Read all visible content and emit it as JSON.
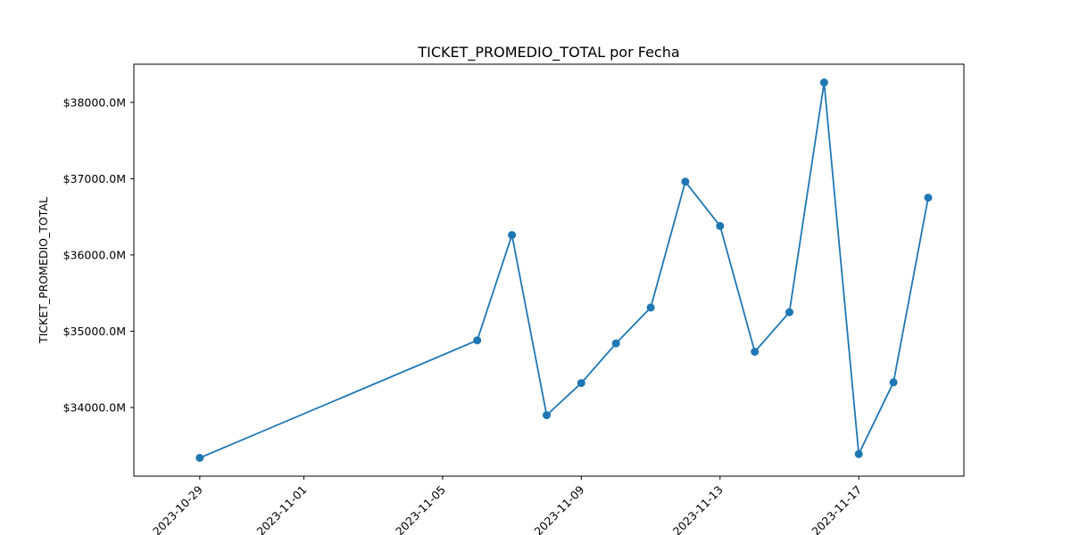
{
  "chart_data": {
    "type": "line",
    "title": "TICKET_PROMEDIO_TOTAL por Fecha",
    "xlabel": "",
    "ylabel": "TICKET_PROMEDIO_TOTAL",
    "x": [
      "2023-10-29",
      "2023-11-06",
      "2023-11-07",
      "2023-11-08",
      "2023-11-09",
      "2023-11-10",
      "2023-11-11",
      "2023-11-12",
      "2023-11-13",
      "2023-11-14",
      "2023-11-15",
      "2023-11-16",
      "2023-11-17",
      "2023-11-18",
      "2023-11-19"
    ],
    "series": [
      {
        "values": [
          33340,
          34880,
          36260,
          33900,
          34320,
          34840,
          35310,
          36960,
          36380,
          34730,
          35250,
          38260,
          33390,
          34330,
          36750
        ],
        "color": "#1f77b4"
      }
    ],
    "x_ticks": [
      "2023-10-29",
      "2023-11-01",
      "2023-11-05",
      "2023-11-09",
      "2023-11-13",
      "2023-11-17"
    ],
    "y_ticks": [
      {
        "value": 34000,
        "label": "$34000.0M"
      },
      {
        "value": 35000,
        "label": "$35000.0M"
      },
      {
        "value": 36000,
        "label": "$36000.0M"
      },
      {
        "value": 37000,
        "label": "$37000.0M"
      },
      {
        "value": 38000,
        "label": "$38000.0M"
      }
    ],
    "xlim": [
      "2023-10-28",
      "2023-11-19"
    ],
    "ylim": [
      33100,
      38500
    ],
    "grid": false,
    "legend": "none",
    "marker": "circle"
  }
}
